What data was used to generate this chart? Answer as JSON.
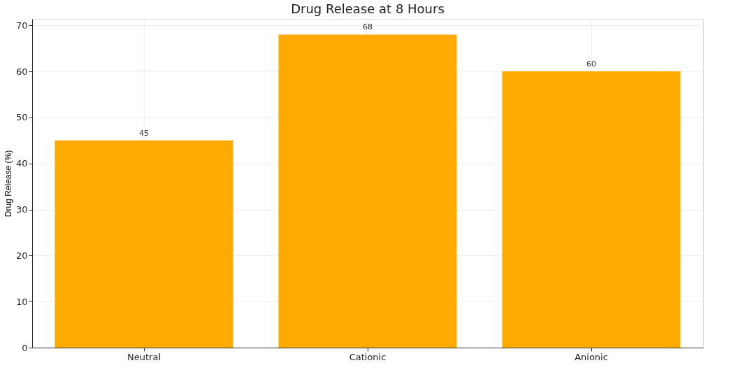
{
  "chart_data": {
    "type": "bar",
    "title": "Drug Release at 8 Hours",
    "ylabel": "Drug Release (%)",
    "categories": [
      "Neutral",
      "Cationic",
      "Anionic"
    ],
    "values": [
      45,
      68,
      60
    ],
    "color": "#ffaa00",
    "ylim": [
      0,
      71.4
    ],
    "yticks": [
      0,
      10,
      20,
      30,
      40,
      50,
      60,
      70
    ],
    "grid": true,
    "data_labels": true
  }
}
